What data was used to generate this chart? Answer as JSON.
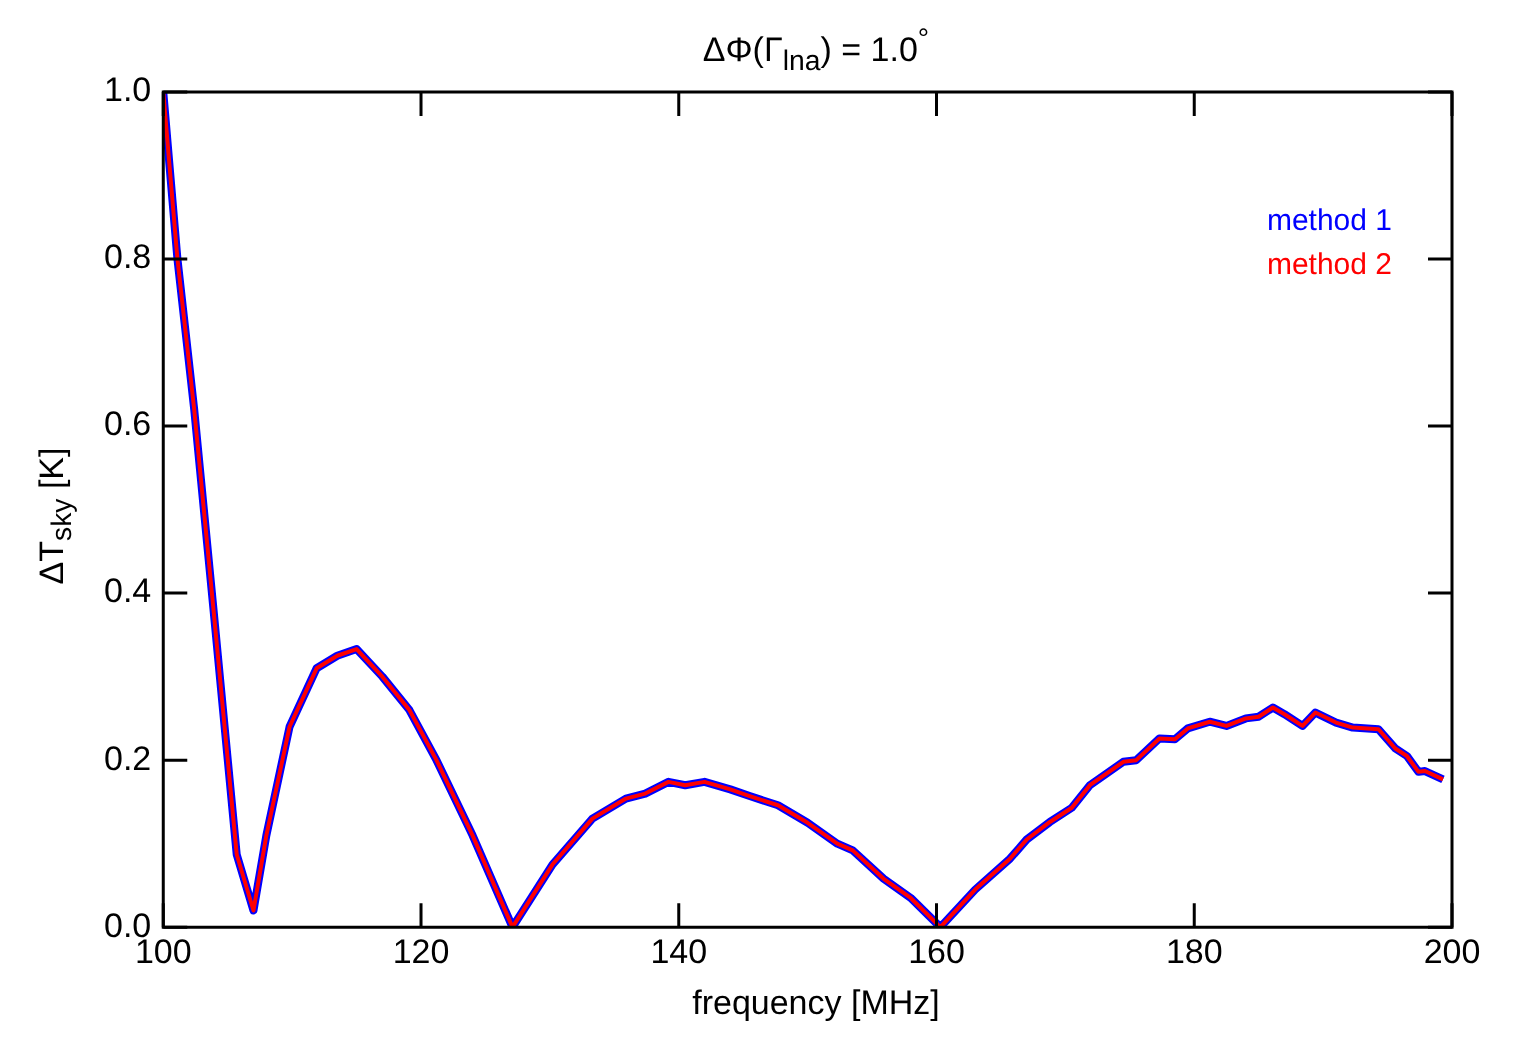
{
  "chart_data": {
    "type": "line",
    "title": "ΔΦ(Γ$_{lna}$) = 1.0$^{°}$",
    "xlabel": "frequency [MHz]",
    "ylabel": "ΔT$_{sky}$ [K]",
    "x": [
      100,
      101.1,
      102.4,
      103.9,
      105.7,
      107,
      108,
      109.8,
      111.9,
      113.5,
      115,
      117,
      119.1,
      121.2,
      124,
      127.1,
      130.2,
      133.3,
      135.9,
      137.4,
      139.2,
      140.5,
      142,
      144,
      145.5,
      147.7,
      150,
      152.3,
      153.5,
      155.9,
      158,
      160.3,
      163,
      165.7,
      167,
      168.8,
      170.5,
      171.9,
      174.5,
      175.5,
      177.3,
      178.5,
      179.5,
      181.2,
      182.5,
      184,
      185,
      186.1,
      187,
      188.4,
      189.4,
      191,
      192.3,
      194.3,
      195.6,
      196.5,
      197.4,
      197.9,
      199.3
    ],
    "series": [
      {
        "name": "method 1",
        "color": "#0000ff",
        "values": [
          1.0,
          0.8,
          0.62,
          0.38,
          0.087,
          0.02,
          0.11,
          0.24,
          0.31,
          0.325,
          0.333,
          0.3,
          0.26,
          0.2,
          0.11,
          0.0,
          0.075,
          0.13,
          0.154,
          0.16,
          0.174,
          0.17,
          0.174,
          0.165,
          0.157,
          0.146,
          0.125,
          0.1,
          0.092,
          0.058,
          0.035,
          0.0,
          0.045,
          0.082,
          0.105,
          0.126,
          0.143,
          0.17,
          0.198,
          0.2,
          0.226,
          0.225,
          0.238,
          0.246,
          0.241,
          0.25,
          0.252,
          0.263,
          0.255,
          0.241,
          0.257,
          0.245,
          0.239,
          0.237,
          0.214,
          0.205,
          0.186,
          0.187,
          0.177
        ]
      },
      {
        "name": "method 2",
        "color": "#ff0000",
        "values": [
          1.0,
          0.8,
          0.62,
          0.38,
          0.087,
          0.02,
          0.11,
          0.24,
          0.31,
          0.325,
          0.333,
          0.3,
          0.26,
          0.2,
          0.11,
          0.0,
          0.075,
          0.13,
          0.154,
          0.16,
          0.174,
          0.17,
          0.174,
          0.165,
          0.157,
          0.146,
          0.125,
          0.1,
          0.092,
          0.058,
          0.035,
          0.0,
          0.045,
          0.082,
          0.105,
          0.126,
          0.143,
          0.17,
          0.198,
          0.2,
          0.226,
          0.225,
          0.238,
          0.246,
          0.241,
          0.25,
          0.252,
          0.263,
          0.255,
          0.241,
          0.257,
          0.245,
          0.239,
          0.237,
          0.214,
          0.205,
          0.186,
          0.187,
          0.177
        ]
      }
    ],
    "xlim": [
      100,
      200
    ],
    "xticks": [
      100,
      120,
      140,
      160,
      180,
      200
    ],
    "ylim": [
      0,
      1
    ],
    "yticks": [
      {
        "value": 0,
        "label": "0.0"
      },
      {
        "value": 0.2,
        "label": "0.2"
      },
      {
        "value": 0.4,
        "label": "0.4"
      },
      {
        "value": 0.6,
        "label": "0.6"
      },
      {
        "value": 0.8,
        "label": "0.8"
      },
      {
        "value": 1,
        "label": "1.0"
      }
    ],
    "legend": "top right",
    "grid": false,
    "marker": "none",
    "line_style": "solid"
  }
}
